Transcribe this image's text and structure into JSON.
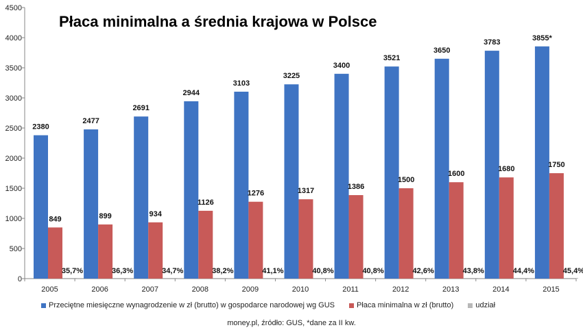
{
  "chart_data": {
    "type": "bar",
    "title": "Płaca minimalna a średnia krajowa w Polsce",
    "categories": [
      "2005",
      "2006",
      "2007",
      "2008",
      "2009",
      "2010",
      "2011",
      "2012",
      "2013",
      "2014",
      "2015"
    ],
    "series": [
      {
        "name": "Przeciętne miesięczne wynagrodzenie w zł (brutto) w gospodarce narodowej wg GUS",
        "color": "#3f74c3",
        "values": [
          2380,
          2477,
          2691,
          2944,
          3103,
          3225,
          3400,
          3521,
          3650,
          3783,
          3855
        ],
        "labels": [
          "2380",
          "2477",
          "2691",
          "2944",
          "3103",
          "3225",
          "3400",
          "3521",
          "3650",
          "3783",
          "3855*"
        ]
      },
      {
        "name": "Płaca minimalna w zł (brutto)",
        "color": "#c85a58",
        "values": [
          849,
          899,
          934,
          1126,
          1276,
          1317,
          1386,
          1500,
          1600,
          1680,
          1750
        ],
        "labels": [
          "849",
          "899",
          "934",
          "1126",
          "1276",
          "1317",
          "1386",
          "1500",
          "1600",
          "1680",
          "1750"
        ]
      },
      {
        "name": "udział",
        "color": "#b8b8b8",
        "values": [
          35.7,
          36.3,
          34.7,
          38.2,
          41.1,
          40.8,
          40.8,
          42.6,
          43.8,
          44.4,
          45.4
        ],
        "labels": [
          "35,7%",
          "36,3%",
          "34,7%",
          "38,2%",
          "41,1%",
          "40,8%",
          "40,8%",
          "42,6%",
          "43,8%",
          "44,4%",
          "45,4%"
        ]
      }
    ],
    "yticks": [
      "0",
      "500",
      "1000",
      "1500",
      "2000",
      "2500",
      "3000",
      "3500",
      "4000",
      "4500"
    ],
    "ylim": [
      0,
      4500
    ],
    "grid": false,
    "legend_position": "bottom"
  },
  "source_note": "money.pl, źródło: GUS, *dane za II kw."
}
